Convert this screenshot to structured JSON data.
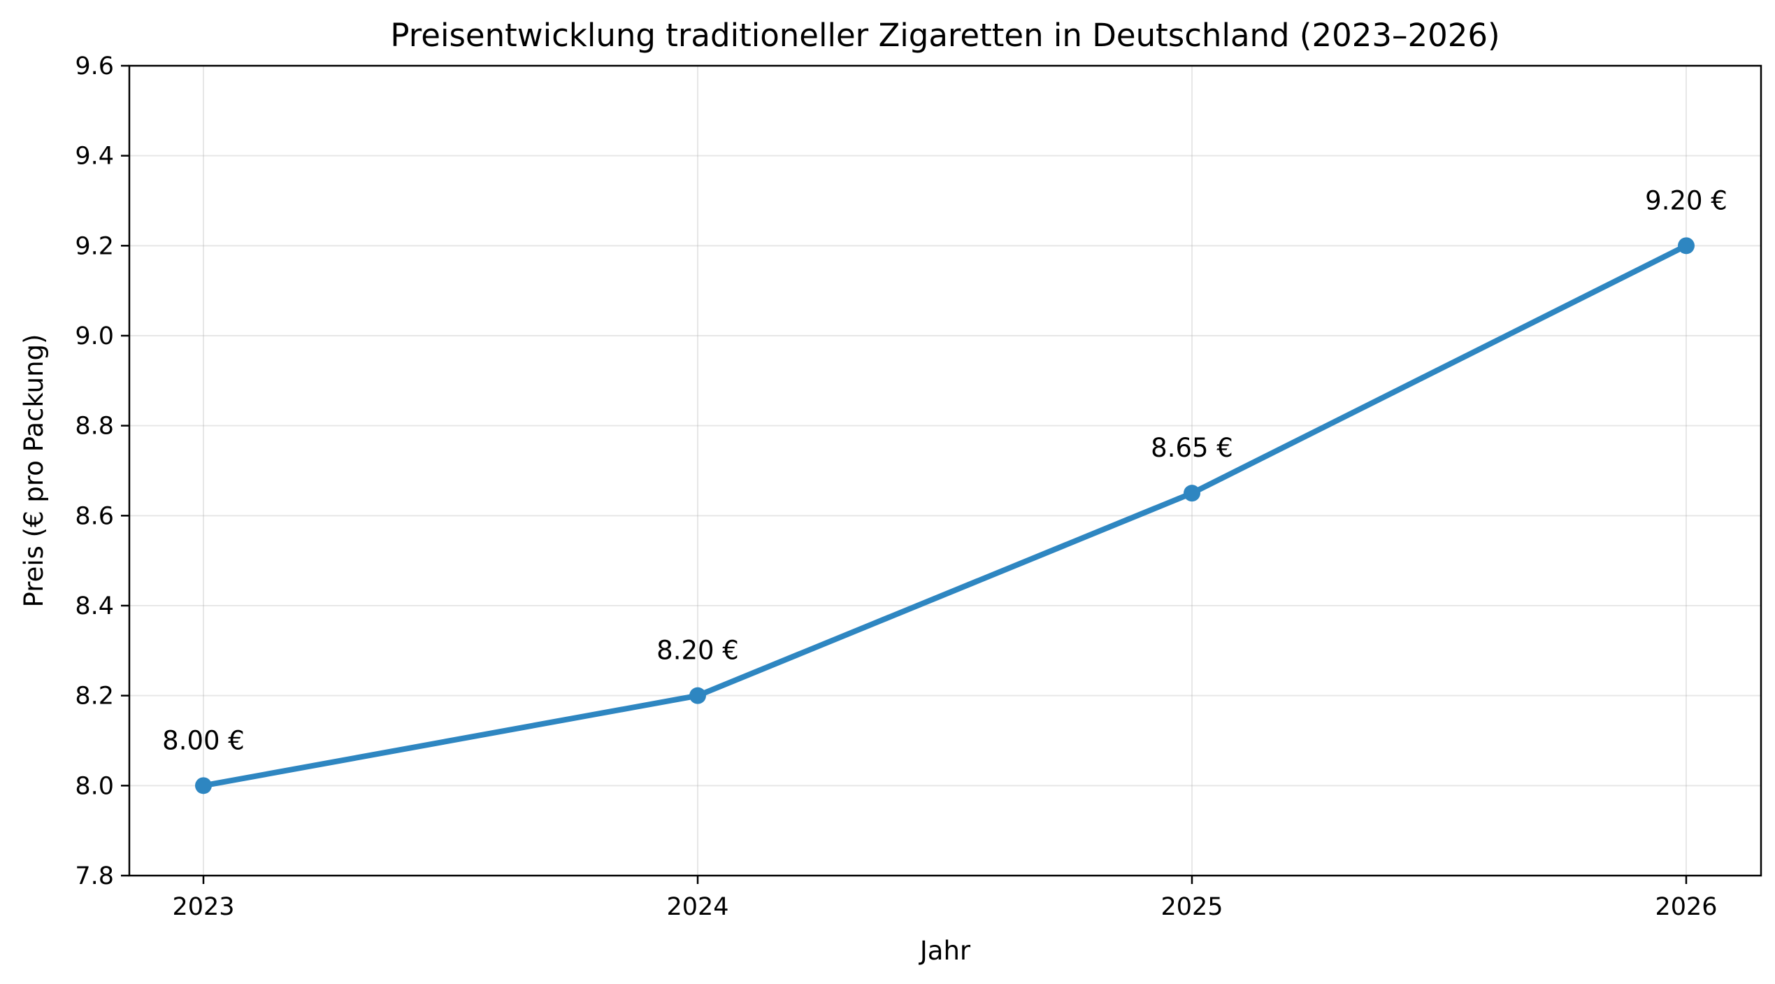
{
  "chart_data": {
    "type": "line",
    "title": "Preisentwicklung traditioneller Zigaretten in Deutschland (2023–2026)",
    "xlabel": "Jahr",
    "ylabel": "Preis (€ pro Packung)",
    "categories": [
      "2023",
      "2024",
      "2025",
      "2026"
    ],
    "values": [
      8.0,
      8.2,
      8.65,
      9.2
    ],
    "data_labels": [
      "8.00 €",
      "8.20 €",
      "8.65 €",
      "9.20 €"
    ],
    "ylim": [
      7.8,
      9.6
    ],
    "yticks": [
      7.8,
      8.0,
      8.2,
      8.4,
      8.6,
      8.8,
      9.0,
      9.2,
      9.4,
      9.6
    ],
    "ytick_labels": [
      "7.8",
      "8.0",
      "8.2",
      "8.4",
      "8.6",
      "8.8",
      "9.0",
      "9.2",
      "9.4",
      "9.6"
    ],
    "grid": true,
    "color": "#2e86c1"
  }
}
